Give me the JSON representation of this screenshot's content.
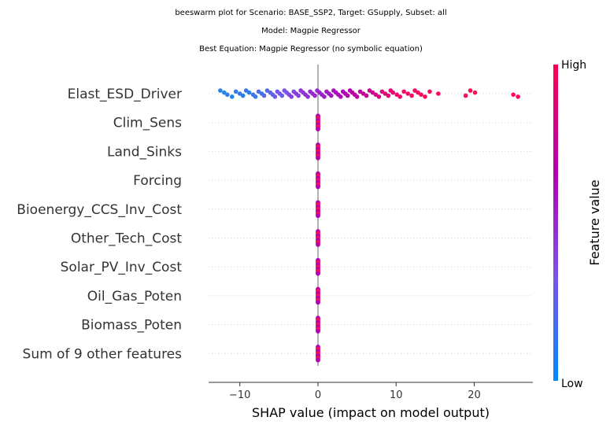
{
  "chart_data": {
    "type": "scatter",
    "subtype": "beeswarm",
    "title_lines": [
      "beeswarm plot for Scenario: BASE_SSP2, Target: GSupply, Subset: all",
      "Model: Magpie Regressor",
      "Best Equation: Magpie Regressor (no symbolic equation)"
    ],
    "xlabel": "SHAP value (impact on model output)",
    "xlim": [
      -14,
      27.5
    ],
    "xticks": [
      -10,
      0,
      10,
      20
    ],
    "xtick_labels": [
      "−10",
      "0",
      "10",
      "20"
    ],
    "features": [
      "Elast_ESD_Driver",
      "Clim_Sens",
      "Land_Sinks",
      "Forcing",
      "Bioenergy_CCS_Inv_Cost",
      "Other_Tech_Cost",
      "Solar_PV_Inv_Cost",
      "Oil_Gas_Poten",
      "Biomass_Poten",
      "Sum of 9 other features"
    ],
    "elast_points": [
      [
        -12.5,
        0.05
      ],
      [
        -12.0,
        0.02
      ],
      [
        -11.6,
        0.08
      ],
      [
        -11.0,
        0.0
      ],
      [
        -10.5,
        0.06
      ],
      [
        -10.0,
        0.1
      ],
      [
        -9.6,
        0.04
      ],
      [
        -9.2,
        0.12
      ],
      [
        -8.8,
        0.03
      ],
      [
        -8.3,
        0.14
      ],
      [
        -8.0,
        0.08
      ],
      [
        -7.6,
        0.18
      ],
      [
        -7.2,
        0.1
      ],
      [
        -6.9,
        0.22
      ],
      [
        -6.5,
        0.15
      ],
      [
        -6.1,
        0.25
      ],
      [
        -5.8,
        0.2
      ],
      [
        -5.5,
        0.3
      ],
      [
        -5.2,
        0.3
      ],
      [
        -4.9,
        0.32
      ],
      [
        -4.6,
        0.28
      ],
      [
        -4.3,
        0.35
      ],
      [
        -4.0,
        0.33
      ],
      [
        -3.7,
        0.38
      ],
      [
        -3.4,
        0.4
      ],
      [
        -3.1,
        0.36
      ],
      [
        -2.8,
        0.42
      ],
      [
        -2.5,
        0.4
      ],
      [
        -2.2,
        0.45
      ],
      [
        -1.9,
        0.43
      ],
      [
        -1.6,
        0.47
      ],
      [
        -1.3,
        0.46
      ],
      [
        -1.0,
        0.48
      ],
      [
        -0.7,
        0.49
      ],
      [
        -0.4,
        0.5
      ],
      [
        -0.1,
        0.5
      ],
      [
        0.2,
        0.52
      ],
      [
        0.5,
        0.53
      ],
      [
        0.8,
        0.54
      ],
      [
        1.1,
        0.55
      ],
      [
        1.4,
        0.56
      ],
      [
        1.7,
        0.57
      ],
      [
        2.0,
        0.58
      ],
      [
        2.3,
        0.6
      ],
      [
        2.6,
        0.62
      ],
      [
        2.9,
        0.63
      ],
      [
        3.2,
        0.64
      ],
      [
        3.5,
        0.66
      ],
      [
        3.8,
        0.67
      ],
      [
        4.1,
        0.68
      ],
      [
        4.4,
        0.7
      ],
      [
        4.7,
        0.71
      ],
      [
        5.0,
        0.72
      ],
      [
        5.4,
        0.74
      ],
      [
        5.8,
        0.75
      ],
      [
        6.2,
        0.77
      ],
      [
        6.6,
        0.78
      ],
      [
        7.0,
        0.8
      ],
      [
        7.4,
        0.82
      ],
      [
        7.8,
        0.83
      ],
      [
        8.2,
        0.85
      ],
      [
        8.6,
        0.86
      ],
      [
        9.0,
        0.88
      ],
      [
        9.3,
        0.89
      ],
      [
        9.6,
        0.9
      ],
      [
        10.1,
        0.91
      ],
      [
        10.5,
        0.92
      ],
      [
        11.0,
        0.93
      ],
      [
        11.5,
        0.94
      ],
      [
        12.0,
        0.95
      ],
      [
        12.4,
        0.95
      ],
      [
        12.8,
        0.96
      ],
      [
        13.2,
        0.97
      ],
      [
        13.7,
        0.97
      ],
      [
        14.3,
        0.98
      ],
      [
        15.4,
        0.99
      ],
      [
        18.9,
        1.0
      ],
      [
        19.5,
        1.0
      ],
      [
        20.1,
        1.0
      ],
      [
        25.0,
        1.0
      ],
      [
        25.6,
        1.0
      ]
    ],
    "colorbar": {
      "high_label": "High",
      "low_label": "Low",
      "title": "Feature value",
      "colors": [
        "#008afb",
        "#7c52ea",
        "#b300b0",
        "#ff0052"
      ]
    },
    "zero_line_color": "#999999",
    "point_color_low": "#1e88e5",
    "point_color_high": "#ff0d57"
  }
}
